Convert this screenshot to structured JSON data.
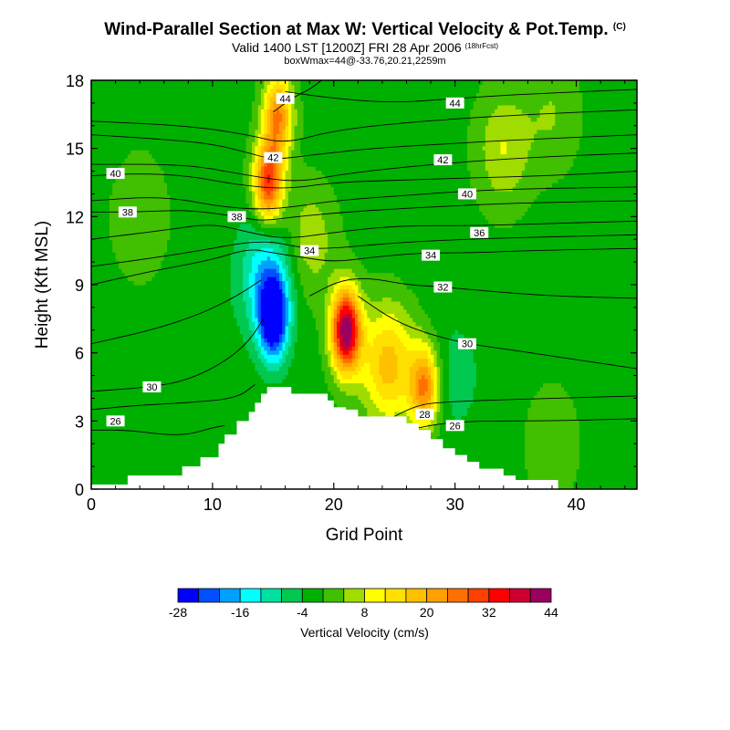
{
  "chart_data": {
    "type": "heatmap",
    "title": "Wind-Parallel Section at Max W: Vertical Velocity & Pot.Temp.",
    "title_mark": "(C)",
    "subtitle": "Valid 1400 LST [1200Z] FRI 28 Apr 2006",
    "subtitle_note": "(18hrFcst)",
    "subtitle2": "boxWmax=44@-33.76,20.21,2259m",
    "xlabel": "Grid Point",
    "ylabel": "Height (Kft MSL)",
    "xlim": [
      0,
      45
    ],
    "ylim": [
      0,
      18
    ],
    "xticks": [
      0,
      10,
      20,
      30,
      40
    ],
    "yticks": [
      0,
      3,
      6,
      9,
      12,
      15,
      18
    ],
    "colorbar": {
      "label": "Vertical Velocity (cm/s)",
      "tick_labels": [
        -28,
        -16,
        -4,
        8,
        20,
        32,
        44
      ],
      "min": -28,
      "max": 44,
      "colors": [
        "#0000ff",
        "#0050ff",
        "#00a0ff",
        "#00ffff",
        "#00e0a0",
        "#00c850",
        "#00b000",
        "#40c000",
        "#a0dc00",
        "#ffff00",
        "#ffe000",
        "#ffc000",
        "#ffa000",
        "#ff7000",
        "#ff4000",
        "#ff0000",
        "#cc0030",
        "#990060"
      ]
    },
    "terrain": [
      [
        0,
        0.2
      ],
      [
        3,
        0.6
      ],
      [
        7,
        0.6
      ],
      [
        7.5,
        1.0
      ],
      [
        8.5,
        1.0
      ],
      [
        9,
        1.4
      ],
      [
        10,
        1.4
      ],
      [
        10.5,
        2.0
      ],
      [
        11,
        2.4
      ],
      [
        12,
        3.0
      ],
      [
        13,
        3.4
      ],
      [
        13.5,
        3.8
      ],
      [
        14,
        4.2
      ],
      [
        14.5,
        4.5
      ],
      [
        16,
        4.5
      ],
      [
        16.5,
        4.2
      ],
      [
        19,
        4.2
      ],
      [
        19.5,
        3.9
      ],
      [
        20,
        3.6
      ],
      [
        21,
        3.5
      ],
      [
        22,
        3.2
      ],
      [
        25,
        3.2
      ],
      [
        26,
        2.9
      ],
      [
        27,
        2.6
      ],
      [
        28,
        2.2
      ],
      [
        29,
        1.8
      ],
      [
        30,
        1.5
      ],
      [
        31,
        1.2
      ],
      [
        32,
        0.9
      ],
      [
        34,
        0.6
      ],
      [
        35,
        0.4
      ],
      [
        38,
        0.4
      ],
      [
        38.5,
        0.0
      ]
    ],
    "vv_features": [
      {
        "x": 15,
        "y": 7.5,
        "value": -30
      },
      {
        "x": 14.5,
        "y": 9.5,
        "value": -16
      },
      {
        "x": 14.6,
        "y": 13.5,
        "value": 32
      },
      {
        "x": 15.4,
        "y": 16.5,
        "value": 24
      },
      {
        "x": 21,
        "y": 7,
        "value": 44
      },
      {
        "x": 24.5,
        "y": 5.5,
        "value": 18
      },
      {
        "x": 27.5,
        "y": 4.5,
        "value": 24
      },
      {
        "x": 30,
        "y": 5,
        "value": -6
      },
      {
        "x": 27,
        "y": 12,
        "value": -4
      },
      {
        "x": 23,
        "y": 16,
        "value": -3
      },
      {
        "x": 37,
        "y": 10,
        "value": -2
      },
      {
        "x": 19.5,
        "y": 14.5,
        "value": -2
      },
      {
        "x": 34,
        "y": 15,
        "value": 8
      },
      {
        "x": 38,
        "y": 16.5,
        "value": 4
      },
      {
        "x": 4,
        "y": 12,
        "value": 4
      },
      {
        "x": 11,
        "y": 8,
        "value": -2
      },
      {
        "x": 3,
        "y": 2,
        "value": -2
      },
      {
        "x": 18,
        "y": 11,
        "value": 7
      },
      {
        "x": 38,
        "y": 2,
        "value": 3
      },
      {
        "x": 43,
        "y": 7,
        "value": -2
      }
    ],
    "theta_contours": [
      {
        "label": "26",
        "path": [
          [
            0,
            2.6
          ],
          [
            3,
            2.6
          ],
          [
            6,
            2.4
          ],
          [
            8,
            2.4
          ],
          [
            10,
            2.7
          ],
          [
            11,
            2.8
          ]
        ],
        "label_at": [
          2,
          3.0
        ]
      },
      {
        "label": "26",
        "path": [
          [
            27,
            2.7
          ],
          [
            29,
            2.9
          ],
          [
            32,
            3.0
          ],
          [
            38,
            3.0
          ],
          [
            45,
            3.1
          ]
        ],
        "label_at": [
          30,
          2.8
        ]
      },
      {
        "label": "28",
        "path": [
          [
            0,
            3.5
          ],
          [
            4,
            3.7
          ],
          [
            8,
            3.8
          ],
          [
            12,
            4.0
          ],
          [
            13.5,
            4.6
          ]
        ],
        "label_at": null
      },
      {
        "label": "28",
        "path": [
          [
            25,
            3.2
          ],
          [
            26.5,
            3.6
          ],
          [
            28,
            3.8
          ],
          [
            32,
            3.9
          ],
          [
            38,
            4.0
          ],
          [
            45,
            4.1
          ]
        ],
        "label_at": [
          27.5,
          3.3
        ]
      },
      {
        "label": "30",
        "path": [
          [
            0,
            4.3
          ],
          [
            5,
            4.5
          ],
          [
            8,
            4.8
          ],
          [
            11,
            5.6
          ],
          [
            13,
            6.5
          ],
          [
            14.2,
            7.5
          ]
        ],
        "label_at": [
          5,
          4.5
        ]
      },
      {
        "label": "30",
        "path": [
          [
            22,
            8.5
          ],
          [
            25,
            7.4
          ],
          [
            28,
            6.8
          ],
          [
            31,
            6.4
          ],
          [
            35,
            6.1
          ],
          [
            40,
            5.7
          ],
          [
            45,
            5.3
          ]
        ],
        "label_at": [
          31,
          6.4
        ]
      },
      {
        "label": "32",
        "path": [
          [
            0,
            6.4
          ],
          [
            5,
            7.0
          ],
          [
            9,
            7.7
          ],
          [
            12,
            8.5
          ],
          [
            14,
            9.2
          ]
        ],
        "label_at": null
      },
      {
        "label": "32",
        "path": [
          [
            18,
            8.5
          ],
          [
            20.5,
            9.2
          ],
          [
            23,
            9.3
          ],
          [
            26,
            9.0
          ],
          [
            29,
            8.9
          ],
          [
            33,
            8.7
          ],
          [
            38,
            8.5
          ],
          [
            45,
            8.4
          ]
        ],
        "label_at": [
          29,
          8.9
        ]
      },
      {
        "label": "34",
        "path": [
          [
            0,
            9.0
          ],
          [
            5,
            9.6
          ],
          [
            10,
            10.1
          ],
          [
            13,
            10.6
          ],
          [
            15,
            10.4
          ],
          [
            17.5,
            10.2
          ],
          [
            20,
            10.0
          ],
          [
            23,
            10.2
          ],
          [
            27,
            10.4
          ],
          [
            31,
            10.4
          ],
          [
            36,
            10.5
          ],
          [
            45,
            10.6
          ]
        ],
        "label_at": [
          28,
          10.3
        ]
      },
      {
        "label": "34",
        "path": [
          [
            0,
            9.8
          ],
          [
            8,
            10.4
          ],
          [
            14,
            11.0
          ],
          [
            17.5,
            10.6
          ],
          [
            20,
            10.6
          ],
          [
            24,
            10.8
          ],
          [
            30,
            11.0
          ],
          [
            45,
            11.2
          ]
        ],
        "label_at": [
          18,
          10.5
        ]
      },
      {
        "label": "36",
        "path": [
          [
            0,
            11.0
          ],
          [
            6,
            11.4
          ],
          [
            10,
            11.7
          ],
          [
            13,
            11.3
          ],
          [
            16,
            11.0
          ],
          [
            20,
            11.3
          ],
          [
            25,
            11.6
          ],
          [
            32,
            11.6
          ],
          [
            38,
            11.7
          ],
          [
            45,
            11.8
          ]
        ],
        "label_at": [
          32,
          11.3
        ]
      },
      {
        "label": "38",
        "path": [
          [
            0,
            12.2
          ],
          [
            4,
            12.2
          ],
          [
            8,
            12.3
          ],
          [
            12,
            12.0
          ],
          [
            14,
            11.8
          ],
          [
            17,
            12.0
          ],
          [
            21,
            12.2
          ],
          [
            27,
            12.4
          ],
          [
            35,
            12.6
          ],
          [
            45,
            12.7
          ]
        ],
        "label_at": [
          3,
          12.2
        ]
      },
      {
        "label": "38",
        "path": [
          [
            0,
            12.7
          ],
          [
            6,
            12.9
          ],
          [
            11,
            12.4
          ],
          [
            15,
            12.3
          ],
          [
            20,
            12.7
          ],
          [
            25,
            12.9
          ],
          [
            33,
            13.2
          ],
          [
            45,
            13.3
          ]
        ],
        "label_at": [
          12,
          12
        ]
      },
      {
        "label": "40",
        "path": [
          [
            0,
            13.8
          ],
          [
            4,
            13.9
          ],
          [
            8,
            13.8
          ],
          [
            12,
            13.4
          ],
          [
            16,
            13.2
          ],
          [
            20,
            13.5
          ],
          [
            25,
            13.6
          ],
          [
            31,
            13.7
          ],
          [
            38,
            13.8
          ],
          [
            45,
            14.0
          ]
        ],
        "label_at": [
          31,
          13.0
        ]
      },
      {
        "label": "40",
        "path": [
          [
            0,
            14.3
          ],
          [
            8,
            14.3
          ],
          [
            13,
            13.8
          ],
          [
            17,
            13.5
          ],
          [
            21,
            13.9
          ],
          [
            28,
            14.3
          ],
          [
            36,
            14.6
          ],
          [
            45,
            14.8
          ]
        ],
        "label_at": [
          2,
          13.9
        ]
      },
      {
        "label": "42",
        "path": [
          [
            0,
            15.6
          ],
          [
            6,
            15.4
          ],
          [
            10,
            15.2
          ],
          [
            13,
            14.8
          ],
          [
            15,
            14.5
          ],
          [
            18,
            14.7
          ],
          [
            23,
            15.0
          ],
          [
            29,
            15.2
          ],
          [
            36,
            15.4
          ],
          [
            45,
            15.6
          ]
        ],
        "label_at": [
          29,
          14.5
        ]
      },
      {
        "label": "42",
        "path": [
          [
            0,
            16.2
          ],
          [
            8,
            16.0
          ],
          [
            13,
            15.6
          ],
          [
            16,
            15.2
          ],
          [
            20,
            15.8
          ],
          [
            27,
            16.2
          ],
          [
            36,
            16.5
          ],
          [
            45,
            16.7
          ]
        ],
        "label_at": [
          15,
          14.6
        ]
      },
      {
        "label": "44",
        "path": [
          [
            16,
            17.5
          ],
          [
            20,
            17.2
          ],
          [
            25,
            17.0
          ],
          [
            30,
            17.2
          ],
          [
            36,
            17.4
          ],
          [
            45,
            17.6
          ]
        ],
        "label_at": [
          30,
          17.0
        ]
      },
      {
        "label": "44",
        "path": [
          [
            15,
            16.6
          ],
          [
            16.5,
            17.2
          ],
          [
            18,
            17.6
          ],
          [
            19,
            18.0
          ]
        ],
        "label_at": [
          16,
          17.2
        ]
      }
    ]
  }
}
